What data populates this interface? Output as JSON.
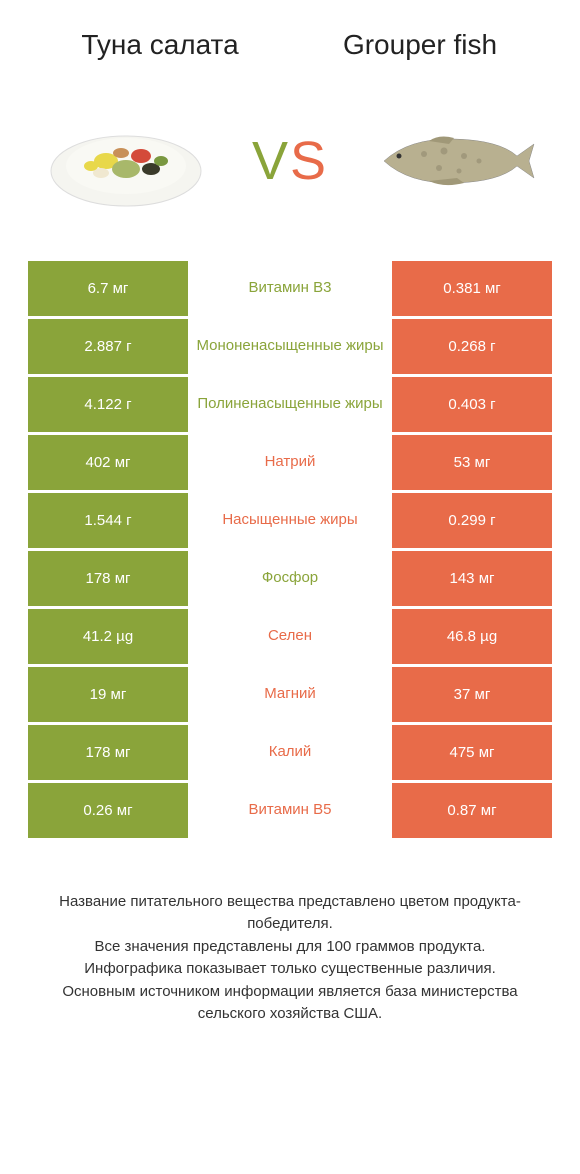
{
  "header": {
    "left_title": "Туна салата",
    "right_title": "Grouper fish"
  },
  "vs": {
    "v": "V",
    "s": "S"
  },
  "colors": {
    "green": "#8aa43a",
    "orange": "#e86b49"
  },
  "rows": [
    {
      "left": "6.7 мг",
      "mid": "Витамин B3",
      "right": "0.381 мг",
      "winner": "left"
    },
    {
      "left": "2.887 г",
      "mid": "Мононенасыщенные жиры",
      "right": "0.268 г",
      "winner": "left"
    },
    {
      "left": "4.122 г",
      "mid": "Полиненасыщенные жиры",
      "right": "0.403 г",
      "winner": "left"
    },
    {
      "left": "402 мг",
      "mid": "Натрий",
      "right": "53 мг",
      "winner": "right"
    },
    {
      "left": "1.544 г",
      "mid": "Насыщенные жиры",
      "right": "0.299 г",
      "winner": "right"
    },
    {
      "left": "178 мг",
      "mid": "Фосфор",
      "right": "143 мг",
      "winner": "left"
    },
    {
      "left": "41.2 µg",
      "mid": "Селен",
      "right": "46.8 µg",
      "winner": "right"
    },
    {
      "left": "19 мг",
      "mid": "Магний",
      "right": "37 мг",
      "winner": "right"
    },
    {
      "left": "178 мг",
      "mid": "Калий",
      "right": "475 мг",
      "winner": "right"
    },
    {
      "left": "0.26 мг",
      "mid": "Витамин B5",
      "right": "0.87 мг",
      "winner": "right"
    }
  ],
  "footer": {
    "line1": "Название питательного вещества представлено цветом продукта-победителя.",
    "line2": "Все значения представлены для 100 граммов продукта.",
    "line3": "Инфографика показывает только существенные различия.",
    "line4": "Основным источником информации является база министерства сельского хозяйства США."
  }
}
